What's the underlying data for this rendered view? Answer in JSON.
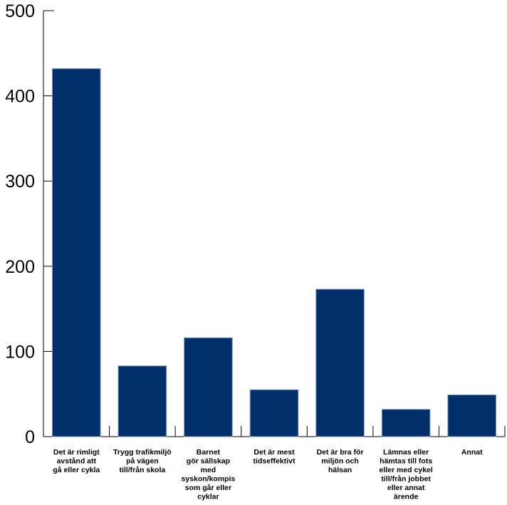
{
  "chart_data": {
    "type": "bar",
    "title": "",
    "xlabel": "",
    "ylabel": "",
    "ylim": [
      0,
      500
    ],
    "yticks": [
      0,
      100,
      200,
      300,
      400,
      500
    ],
    "grid": false,
    "legend": "none",
    "bar_color": "#002f6c",
    "categories": [
      [
        "Det är rimligt",
        "avstånd att",
        "gå eller cykla"
      ],
      [
        "Trygg trafikmiljö",
        "på vägen",
        "till/från skola"
      ],
      [
        "Barnet",
        "gör sällskap",
        "med",
        "syskon/kompis",
        "som går eller",
        "cyklar"
      ],
      [
        "Det är mest",
        "tidseffektivt"
      ],
      [
        "Det är bra för",
        "miljön och",
        "hälsan"
      ],
      [
        "Lämnas eller",
        "hämtas till fots",
        "eller med cykel",
        "till/från jobbet",
        "eller annat",
        "ärende"
      ],
      [
        "Annat"
      ]
    ],
    "values": [
      432,
      83,
      116,
      55,
      173,
      32,
      49
    ]
  }
}
